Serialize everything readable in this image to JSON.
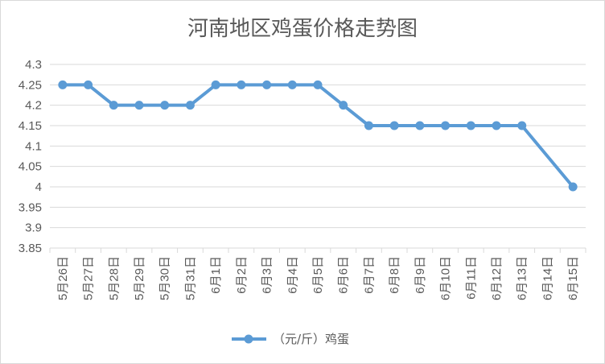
{
  "chart_data": {
    "type": "line",
    "title": "河南地区鸡蛋价格走势图",
    "xlabel": "",
    "ylabel": "",
    "categories": [
      "5月26日",
      "5月27日",
      "5月28日",
      "5月29日",
      "5月30日",
      "5月31日",
      "6月1日",
      "6月2日",
      "6月3日",
      "6月4日",
      "6月5日",
      "6月6日",
      "6月7日",
      "6月8日",
      "6月9日",
      "6月10日",
      "6月11日",
      "6月12日",
      "6月13日",
      "6月14日",
      "6月15日"
    ],
    "series": [
      {
        "name": "（元/斤）鸡蛋",
        "color": "#5b9bd5",
        "values": [
          4.25,
          4.25,
          4.2,
          4.2,
          4.2,
          4.2,
          4.25,
          4.25,
          4.25,
          4.25,
          4.25,
          4.2,
          4.15,
          4.15,
          4.15,
          4.15,
          4.15,
          4.15,
          4.15,
          null,
          4.0
        ]
      }
    ],
    "ylim": [
      3.85,
      4.3
    ],
    "yticks": [
      "4.3",
      "4.25",
      "4.2",
      "4.15",
      "4.1",
      "4.05",
      "4",
      "3.95",
      "3.9",
      "3.85"
    ],
    "grid": true,
    "legend_position": "bottom"
  }
}
